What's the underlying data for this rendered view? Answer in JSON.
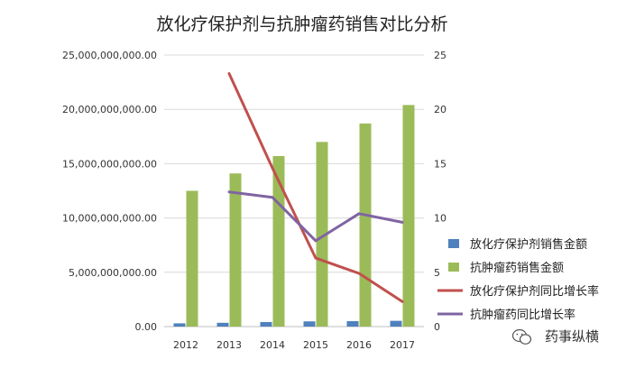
{
  "chart_data": {
    "type": "bar",
    "title": "放化疗保护剂与抗肿瘤药销售对比分析",
    "categories": [
      "2012",
      "2013",
      "2014",
      "2015",
      "2016",
      "2017"
    ],
    "y_left": {
      "ylim": [
        0,
        25000000000
      ],
      "ticks": [
        0,
        5000000000,
        10000000000,
        15000000000,
        20000000000,
        25000000000
      ],
      "tick_labels": [
        "0.00",
        "5,000,000,000.00",
        "10,000,000,000.00",
        "15,000,000,000.00",
        "20,000,000,000.00",
        "25,000,000,000.00"
      ]
    },
    "y_right": {
      "ylim": [
        0,
        25
      ],
      "ticks": [
        0,
        5,
        10,
        15,
        20,
        25
      ],
      "tick_labels": [
        "0",
        "5",
        "10",
        "15",
        "20",
        "25"
      ]
    },
    "series": [
      {
        "name": "放化疗保护剂销售金额",
        "kind": "bar",
        "axis": "left",
        "color": "#4f81bd",
        "values": [
          300000000,
          350000000,
          420000000,
          480000000,
          500000000,
          530000000
        ]
      },
      {
        "name": "抗肿瘤药销售金额",
        "kind": "bar",
        "axis": "left",
        "color": "#9bbb59",
        "values": [
          12500000000,
          14100000000,
          15700000000,
          17000000000,
          18700000000,
          20400000000
        ]
      },
      {
        "name": "放化疗保护剂同比增长率",
        "kind": "line",
        "axis": "right",
        "color": "#c0504d",
        "values": [
          null,
          23.3,
          14.6,
          6.3,
          4.9,
          2.3
        ]
      },
      {
        "name": "抗肿瘤药同比增长率",
        "kind": "line",
        "axis": "right",
        "color": "#8064a2",
        "values": [
          null,
          12.4,
          11.9,
          7.9,
          10.4,
          9.6
        ]
      }
    ],
    "legend_position": "right"
  },
  "watermark": {
    "text": "药事纵横",
    "icon": "wechat-icon"
  }
}
